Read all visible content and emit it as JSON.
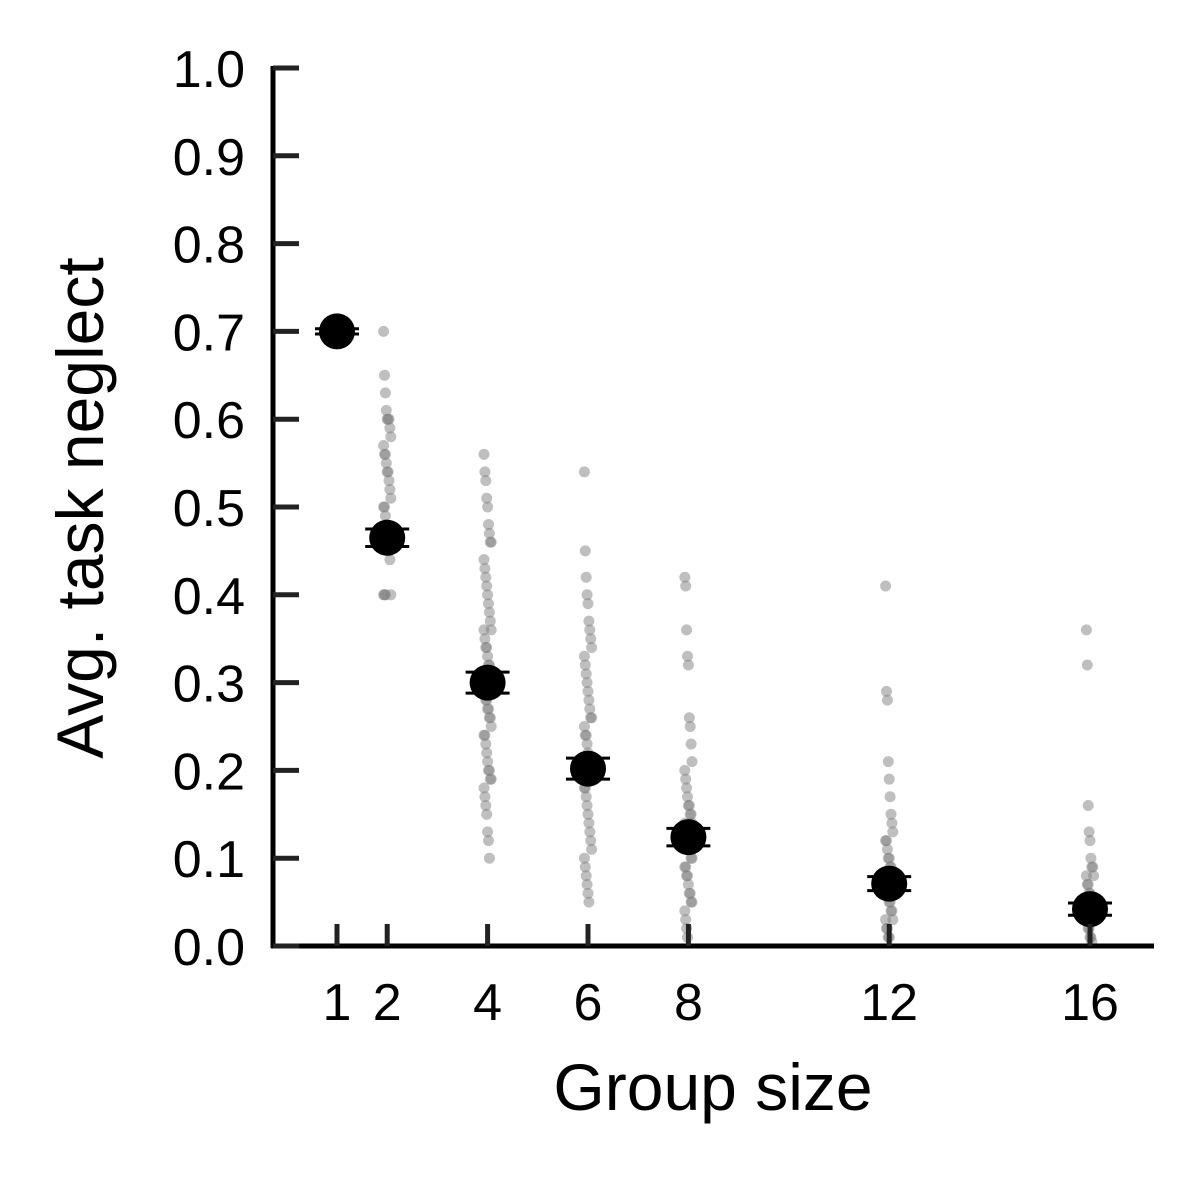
{
  "chart_data": {
    "type": "scatter",
    "title": "",
    "xlabel": "Group size",
    "ylabel": "Avg. task neglect",
    "x_ticks": [
      "1",
      "2",
      "4",
      "6",
      "8",
      "12",
      "16"
    ],
    "y_ticks": [
      "0.0",
      "0.1",
      "0.2",
      "0.3",
      "0.4",
      "0.5",
      "0.6",
      "0.7",
      "0.8",
      "0.9",
      "1.0"
    ],
    "ylim": [
      0,
      1.0
    ],
    "xlim": [
      -0.3,
      16.3
    ],
    "grid": false,
    "colors": {
      "points": "#808080",
      "means": "#000000"
    },
    "means": [
      {
        "x": 1,
        "y": 0.7,
        "err": 0.003
      },
      {
        "x": 2,
        "y": 0.465,
        "err": 0.01
      },
      {
        "x": 4,
        "y": 0.3,
        "err": 0.012
      },
      {
        "x": 6,
        "y": 0.202,
        "err": 0.012
      },
      {
        "x": 8,
        "y": 0.124,
        "err": 0.01
      },
      {
        "x": 12,
        "y": 0.071,
        "err": 0.008
      },
      {
        "x": 16,
        "y": 0.042,
        "err": 0.007
      }
    ],
    "points": [
      {
        "x": 2,
        "y": [
          0.7,
          0.65,
          0.63,
          0.61,
          0.6,
          0.6,
          0.6,
          0.59,
          0.58,
          0.57,
          0.56,
          0.56,
          0.55,
          0.54,
          0.54,
          0.53,
          0.52,
          0.51,
          0.5,
          0.5,
          0.49,
          0.48,
          0.47,
          0.46,
          0.45,
          0.44,
          0.4,
          0.4,
          0.4,
          0.4
        ]
      },
      {
        "x": 4,
        "y": [
          0.56,
          0.54,
          0.53,
          0.51,
          0.5,
          0.48,
          0.47,
          0.46,
          0.46,
          0.44,
          0.43,
          0.42,
          0.41,
          0.4,
          0.39,
          0.38,
          0.37,
          0.36,
          0.36,
          0.35,
          0.34,
          0.34,
          0.33,
          0.32,
          0.32,
          0.31,
          0.3,
          0.3,
          0.29,
          0.28,
          0.28,
          0.27,
          0.27,
          0.26,
          0.26,
          0.25,
          0.24,
          0.24,
          0.23,
          0.22,
          0.21,
          0.2,
          0.2,
          0.19,
          0.19,
          0.18,
          0.17,
          0.16,
          0.15,
          0.13,
          0.12,
          0.1
        ]
      },
      {
        "x": 6,
        "y": [
          0.54,
          0.45,
          0.42,
          0.4,
          0.39,
          0.37,
          0.36,
          0.35,
          0.34,
          0.33,
          0.32,
          0.31,
          0.3,
          0.29,
          0.28,
          0.27,
          0.26,
          0.26,
          0.25,
          0.24,
          0.24,
          0.23,
          0.22,
          0.21,
          0.21,
          0.2,
          0.19,
          0.18,
          0.18,
          0.17,
          0.16,
          0.15,
          0.14,
          0.13,
          0.12,
          0.11,
          0.1,
          0.09,
          0.08,
          0.07,
          0.06,
          0.05
        ]
      },
      {
        "x": 8,
        "y": [
          0.42,
          0.41,
          0.36,
          0.33,
          0.32,
          0.26,
          0.25,
          0.23,
          0.21,
          0.2,
          0.19,
          0.18,
          0.17,
          0.16,
          0.16,
          0.15,
          0.15,
          0.14,
          0.14,
          0.13,
          0.13,
          0.12,
          0.12,
          0.11,
          0.11,
          0.1,
          0.1,
          0.09,
          0.09,
          0.08,
          0.08,
          0.07,
          0.06,
          0.06,
          0.05,
          0.05,
          0.04,
          0.03,
          0.02,
          0.01
        ]
      },
      {
        "x": 12,
        "y": [
          0.41,
          0.29,
          0.28,
          0.21,
          0.19,
          0.17,
          0.15,
          0.14,
          0.13,
          0.12,
          0.12,
          0.11,
          0.1,
          0.1,
          0.09,
          0.09,
          0.08,
          0.08,
          0.07,
          0.07,
          0.06,
          0.06,
          0.05,
          0.05,
          0.04,
          0.04,
          0.03,
          0.03,
          0.02,
          0.02,
          0.01,
          0.01
        ]
      },
      {
        "x": 16,
        "y": [
          0.36,
          0.32,
          0.16,
          0.13,
          0.12,
          0.1,
          0.09,
          0.09,
          0.08,
          0.08,
          0.07,
          0.07,
          0.06,
          0.06,
          0.05,
          0.05,
          0.04,
          0.04,
          0.03,
          0.03,
          0.02,
          0.02,
          0.01,
          0.01,
          0.005
        ]
      }
    ]
  }
}
